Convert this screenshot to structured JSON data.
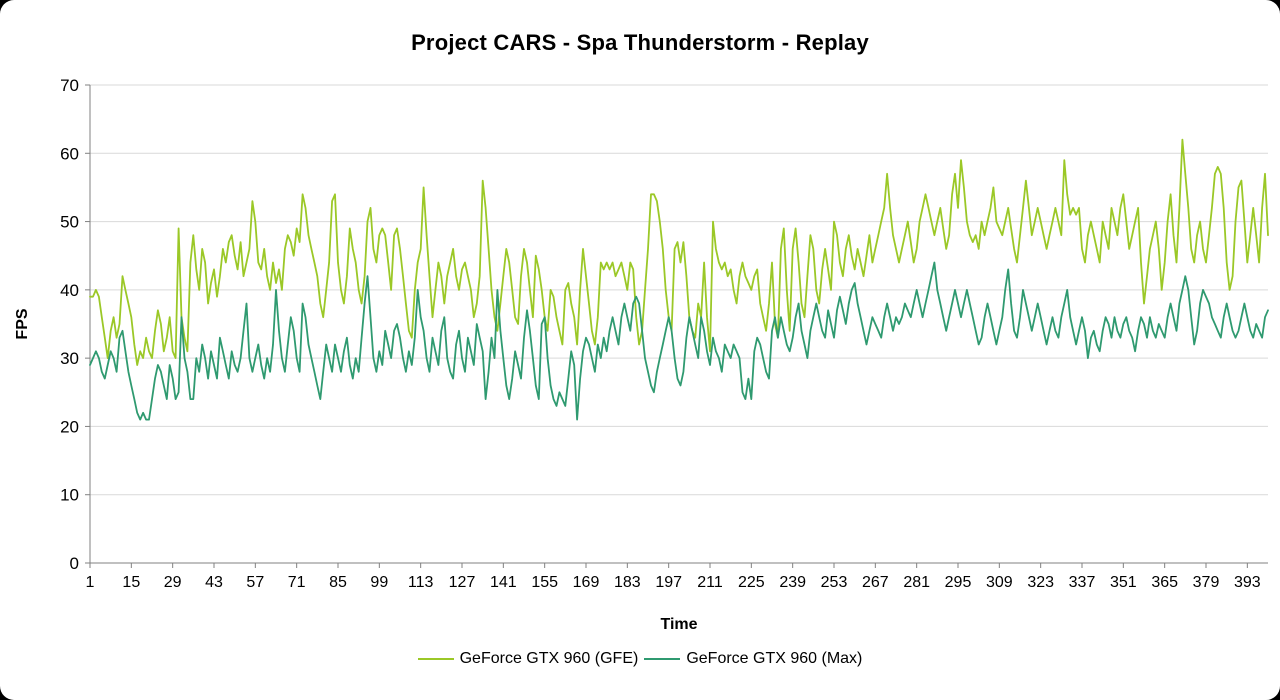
{
  "chart_data": {
    "type": "line",
    "title": "Project CARS - Spa Thunderstorm - Replay",
    "xlabel": "Time",
    "ylabel": "FPS",
    "ylim": [
      0,
      70
    ],
    "y_ticks": [
      0,
      10,
      20,
      30,
      40,
      50,
      60,
      70
    ],
    "x_ticks": [
      1,
      15,
      29,
      43,
      57,
      71,
      85,
      99,
      113,
      127,
      141,
      155,
      169,
      183,
      197,
      211,
      225,
      239,
      253,
      267,
      281,
      295,
      309,
      323,
      337,
      351,
      365,
      379,
      393
    ],
    "x_range": [
      1,
      400
    ],
    "grid": "horizontal",
    "grid_color": "#d9d9d9",
    "axis_color": "#808080",
    "legend_position": "bottom",
    "series": [
      {
        "name": "GeForce GTX 960 (GFE)",
        "color": "#9bc827",
        "values": [
          39,
          39,
          40,
          39,
          36,
          33,
          30,
          34,
          36,
          33,
          35,
          42,
          40,
          38,
          36,
          32,
          29,
          31,
          30,
          33,
          31,
          30,
          34,
          37,
          35,
          31,
          33,
          36,
          31,
          30,
          49,
          36,
          33,
          31,
          44,
          48,
          43,
          40,
          46,
          44,
          38,
          41,
          43,
          39,
          42,
          46,
          44,
          47,
          48,
          45,
          43,
          47,
          42,
          44,
          46,
          53,
          50,
          44,
          43,
          46,
          42,
          40,
          44,
          41,
          43,
          40,
          46,
          48,
          47,
          45,
          49,
          47,
          54,
          52,
          48,
          46,
          44,
          42,
          38,
          36,
          40,
          44,
          53,
          54,
          44,
          40,
          38,
          42,
          49,
          46,
          44,
          40,
          38,
          42,
          50,
          52,
          46,
          44,
          48,
          49,
          48,
          44,
          40,
          48,
          49,
          46,
          42,
          38,
          34,
          33,
          40,
          44,
          46,
          55,
          48,
          42,
          36,
          40,
          44,
          42,
          38,
          42,
          44,
          46,
          42,
          40,
          43,
          44,
          42,
          40,
          36,
          38,
          42,
          56,
          52,
          46,
          40,
          36,
          34,
          38,
          42,
          46,
          44,
          40,
          36,
          35,
          42,
          46,
          44,
          40,
          36,
          45,
          43,
          40,
          36,
          34,
          40,
          39,
          36,
          34,
          32,
          40,
          41,
          38,
          36,
          32,
          40,
          46,
          42,
          38,
          34,
          32,
          36,
          44,
          43,
          44,
          43,
          44,
          42,
          43,
          44,
          42,
          40,
          44,
          43,
          36,
          32,
          34,
          40,
          46,
          54,
          54,
          53,
          50,
          46,
          40,
          36,
          34,
          46,
          47,
          44,
          47,
          42,
          36,
          34,
          33,
          38,
          36,
          44,
          36,
          31,
          50,
          46,
          44,
          43,
          44,
          42,
          43,
          40,
          38,
          42,
          44,
          42,
          41,
          40,
          42,
          43,
          38,
          36,
          34,
          38,
          44,
          35,
          33,
          46,
          49,
          40,
          34,
          46,
          49,
          44,
          38,
          36,
          42,
          48,
          46,
          40,
          38,
          43,
          46,
          43,
          40,
          50,
          48,
          44,
          42,
          46,
          48,
          45,
          43,
          46,
          44,
          42,
          45,
          48,
          44,
          46,
          48,
          50,
          52,
          57,
          52,
          48,
          46,
          44,
          46,
          48,
          50,
          47,
          44,
          46,
          50,
          52,
          54,
          52,
          50,
          48,
          50,
          52,
          49,
          46,
          48,
          54,
          57,
          52,
          59,
          55,
          50,
          48,
          47,
          48,
          46,
          50,
          48,
          50,
          52,
          55,
          50,
          49,
          48,
          50,
          52,
          49,
          46,
          44,
          48,
          52,
          56,
          52,
          48,
          50,
          52,
          50,
          48,
          46,
          48,
          50,
          52,
          50,
          48,
          59,
          54,
          51,
          52,
          51,
          52,
          46,
          44,
          48,
          50,
          48,
          46,
          44,
          50,
          48,
          46,
          52,
          50,
          48,
          52,
          54,
          50,
          46,
          48,
          50,
          52,
          44,
          38,
          42,
          46,
          48,
          50,
          46,
          40,
          44,
          50,
          54,
          48,
          44,
          52,
          62,
          57,
          52,
          46,
          44,
          48,
          50,
          46,
          44,
          48,
          52,
          57,
          58,
          57,
          52,
          44,
          40,
          42,
          50,
          55,
          56,
          50,
          44,
          48,
          52,
          48,
          44,
          52,
          57,
          48
        ]
      },
      {
        "name": "GeForce GTX 960 (Max)",
        "color": "#2f9a70",
        "values": [
          29,
          30,
          31,
          30,
          28,
          27,
          29,
          31,
          30,
          28,
          33,
          34,
          31,
          28,
          26,
          24,
          22,
          21,
          22,
          21,
          21,
          24,
          27,
          29,
          28,
          26,
          24,
          29,
          27,
          24,
          25,
          36,
          30,
          28,
          24,
          24,
          30,
          28,
          32,
          30,
          27,
          31,
          29,
          27,
          33,
          31,
          29,
          27,
          31,
          29,
          28,
          30,
          34,
          38,
          30,
          28,
          30,
          32,
          29,
          27,
          30,
          28,
          32,
          40,
          34,
          30,
          28,
          32,
          36,
          34,
          30,
          28,
          38,
          36,
          32,
          30,
          28,
          26,
          24,
          28,
          32,
          30,
          28,
          32,
          30,
          28,
          31,
          33,
          29,
          27,
          30,
          28,
          33,
          38,
          42,
          36,
          30,
          28,
          31,
          29,
          34,
          32,
          30,
          34,
          35,
          33,
          30,
          28,
          31,
          29,
          33,
          40,
          36,
          34,
          30,
          28,
          33,
          31,
          29,
          34,
          36,
          30,
          28,
          27,
          32,
          34,
          30,
          28,
          33,
          31,
          29,
          35,
          33,
          31,
          24,
          28,
          33,
          30,
          40,
          34,
          30,
          26,
          24,
          27,
          31,
          29,
          27,
          33,
          37,
          34,
          30,
          26,
          24,
          35,
          36,
          30,
          26,
          24,
          23,
          25,
          24,
          23,
          27,
          31,
          29,
          21,
          27,
          31,
          33,
          32,
          30,
          28,
          32,
          30,
          33,
          31,
          34,
          36,
          34,
          32,
          36,
          38,
          36,
          34,
          38,
          39,
          38,
          34,
          30,
          28,
          26,
          25,
          28,
          30,
          32,
          34,
          36,
          34,
          30,
          27,
          26,
          28,
          33,
          36,
          34,
          32,
          30,
          36,
          34,
          31,
          29,
          33,
          31,
          30,
          28,
          32,
          31,
          30,
          32,
          31,
          30,
          25,
          24,
          27,
          24,
          31,
          33,
          32,
          30,
          28,
          27,
          34,
          36,
          33,
          36,
          34,
          32,
          31,
          33,
          36,
          38,
          34,
          32,
          30,
          34,
          36,
          38,
          36,
          34,
          33,
          37,
          35,
          33,
          37,
          39,
          37,
          35,
          38,
          40,
          41,
          38,
          36,
          34,
          32,
          34,
          36,
          35,
          34,
          33,
          36,
          38,
          36,
          34,
          36,
          35,
          36,
          38,
          37,
          36,
          38,
          40,
          38,
          36,
          38,
          40,
          42,
          44,
          40,
          38,
          36,
          34,
          36,
          38,
          40,
          38,
          36,
          38,
          40,
          38,
          36,
          34,
          32,
          33,
          36,
          38,
          36,
          34,
          32,
          34,
          36,
          40,
          43,
          38,
          34,
          33,
          36,
          40,
          38,
          36,
          34,
          36,
          38,
          36,
          34,
          32,
          34,
          36,
          34,
          33,
          36,
          38,
          40,
          36,
          34,
          32,
          34,
          36,
          34,
          30,
          33,
          34,
          32,
          31,
          34,
          36,
          35,
          33,
          36,
          34,
          33,
          35,
          36,
          34,
          33,
          31,
          34,
          36,
          35,
          33,
          36,
          34,
          33,
          35,
          34,
          33,
          36,
          38,
          36,
          34,
          38,
          40,
          42,
          40,
          36,
          32,
          34,
          38,
          40,
          39,
          38,
          36,
          35,
          34,
          33,
          36,
          38,
          36,
          34,
          33,
          34,
          36,
          38,
          36,
          34,
          33,
          35,
          34,
          33,
          36,
          37
        ]
      }
    ]
  }
}
